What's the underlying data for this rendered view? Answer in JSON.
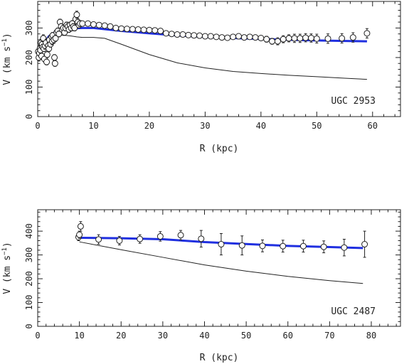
{
  "chart_data": [
    {
      "type": "scatter",
      "label": "UGC 2953",
      "xlabel": "R (kpc)",
      "ylabel_main": "V (km s",
      "ylabel_sup": "−1",
      "ylabel_close": ")",
      "xlim": [
        0,
        65
      ],
      "ylim": [
        0,
        390
      ],
      "xticks": [
        0,
        10,
        20,
        30,
        40,
        50,
        60
      ],
      "yticks": [
        0,
        100,
        200,
        300
      ],
      "observed": {
        "name": "observed rotation curve",
        "points": [
          [
            0.1,
            220,
            10
          ],
          [
            0.2,
            200,
            12
          ],
          [
            0.3,
            215,
            10
          ],
          [
            0.4,
            230,
            12
          ],
          [
            0.5,
            225,
            10
          ],
          [
            0.6,
            250,
            12
          ],
          [
            0.7,
            205,
            10
          ],
          [
            0.8,
            245,
            12
          ],
          [
            0.9,
            235,
            10
          ],
          [
            1.0,
            265,
            12
          ],
          [
            1.1,
            230,
            10
          ],
          [
            1.2,
            195,
            10
          ],
          [
            1.3,
            240,
            12
          ],
          [
            1.5,
            250,
            12
          ],
          [
            1.6,
            185,
            10
          ],
          [
            1.7,
            210,
            10
          ],
          [
            1.9,
            240,
            12
          ],
          [
            2.0,
            230,
            10
          ],
          [
            2.1,
            260,
            12
          ],
          [
            2.3,
            245,
            10
          ],
          [
            2.5,
            270,
            12
          ],
          [
            2.6,
            255,
            12
          ],
          [
            2.7,
            275,
            10
          ],
          [
            2.9,
            260,
            12
          ],
          [
            3.0,
            200,
            10
          ],
          [
            3.1,
            180,
            10
          ],
          [
            3.2,
            265,
            10
          ],
          [
            3.4,
            285,
            10
          ],
          [
            3.6,
            290,
            10
          ],
          [
            3.8,
            280,
            10
          ],
          [
            4.0,
            320,
            10
          ],
          [
            4.2,
            305,
            10
          ],
          [
            4.4,
            295,
            10
          ],
          [
            4.6,
            300,
            10
          ],
          [
            4.8,
            285,
            10
          ],
          [
            5.0,
            300,
            10
          ],
          [
            5.2,
            310,
            10
          ],
          [
            5.4,
            305,
            10
          ],
          [
            5.6,
            295,
            10
          ],
          [
            5.8,
            310,
            10
          ],
          [
            6.0,
            300,
            10
          ],
          [
            6.2,
            315,
            10
          ],
          [
            6.4,
            305,
            10
          ],
          [
            6.6,
            300,
            10
          ],
          [
            6.8,
            330,
            12
          ],
          [
            7.0,
            345,
            12
          ],
          [
            7.2,
            320,
            10
          ],
          [
            7.4,
            310,
            10
          ],
          [
            7.6,
            315,
            10
          ],
          [
            8.0,
            315,
            8
          ],
          [
            9.0,
            315,
            6
          ],
          [
            10.0,
            312,
            6
          ],
          [
            11.0,
            310,
            6
          ],
          [
            12.0,
            308,
            6
          ],
          [
            13.0,
            305,
            6
          ],
          [
            14.0,
            300,
            6
          ],
          [
            15.0,
            298,
            6
          ],
          [
            16.0,
            297,
            6
          ],
          [
            17.0,
            296,
            6
          ],
          [
            18.0,
            295,
            6
          ],
          [
            19.0,
            294,
            6
          ],
          [
            20.0,
            293,
            6
          ],
          [
            21.0,
            292,
            6
          ],
          [
            22.0,
            290,
            6
          ],
          [
            23.0,
            282,
            6
          ],
          [
            24.0,
            280,
            6
          ],
          [
            25.0,
            278,
            6
          ],
          [
            26.0,
            278,
            6
          ],
          [
            27.0,
            276,
            6
          ],
          [
            28.0,
            275,
            6
          ],
          [
            29.0,
            274,
            6
          ],
          [
            30.0,
            272,
            6
          ],
          [
            31.0,
            272,
            6
          ],
          [
            32.0,
            270,
            6
          ],
          [
            33.0,
            268,
            8
          ],
          [
            34.0,
            267,
            8
          ],
          [
            35.0,
            270,
            8
          ],
          [
            36.0,
            272,
            8
          ],
          [
            37.0,
            268,
            8
          ],
          [
            38.0,
            270,
            8
          ],
          [
            39.0,
            268,
            8
          ],
          [
            40.0,
            266,
            8
          ],
          [
            41.0,
            262,
            10
          ],
          [
            42.0,
            255,
            10
          ],
          [
            43.0,
            255,
            12
          ],
          [
            44.0,
            262,
            12
          ],
          [
            45.0,
            265,
            12
          ],
          [
            46.0,
            265,
            14
          ],
          [
            47.0,
            265,
            14
          ],
          [
            48.0,
            267,
            14
          ],
          [
            49.0,
            266,
            14
          ],
          [
            50.0,
            264,
            15
          ],
          [
            52.0,
            264,
            16
          ],
          [
            54.5,
            265,
            16
          ],
          [
            56.5,
            268,
            16
          ],
          [
            59.0,
            282,
            16
          ]
        ]
      },
      "model_total": {
        "name": "total model",
        "color": "#1f2fe0",
        "x": [
          0.0,
          1.0,
          2.0,
          3.0,
          4.0,
          5.0,
          6.0,
          7.0,
          8.0,
          10,
          15,
          20,
          25,
          30,
          35,
          40,
          45,
          50,
          55,
          59
        ],
        "y": [
          195,
          245,
          272,
          285,
          292,
          296,
          298,
          299,
          300,
          300,
          290,
          282,
          275,
          270,
          266,
          263,
          260,
          258,
          256,
          255
        ]
      },
      "model_component": {
        "name": "model component",
        "color": "#222222",
        "x": [
          0,
          1,
          2,
          3,
          4,
          5,
          6,
          7,
          8,
          10,
          12,
          15,
          20,
          25,
          30,
          35,
          40,
          45,
          50,
          55,
          59
        ],
        "y": [
          230,
          250,
          262,
          270,
          275,
          275,
          273,
          270,
          268,
          268,
          265,
          245,
          210,
          182,
          165,
          153,
          146,
          140,
          135,
          130,
          126
        ]
      }
    },
    {
      "type": "scatter",
      "label": "UGC 2487",
      "xlabel": "R (kpc)",
      "ylabel_main": "V (km s",
      "ylabel_sup": "−1",
      "ylabel_close": ")",
      "xlim": [
        0,
        87
      ],
      "ylim": [
        0,
        490
      ],
      "xticks": [
        0,
        10,
        20,
        30,
        40,
        50,
        60,
        70,
        80
      ],
      "yticks": [
        0,
        100,
        200,
        300,
        400
      ],
      "observed": {
        "name": "observed rotation curve",
        "points": [
          [
            9.8,
            375,
            15
          ],
          [
            10.0,
            385,
            15
          ],
          [
            10.3,
            420,
            20
          ],
          [
            14.6,
            365,
            20
          ],
          [
            19.6,
            360,
            18
          ],
          [
            24.5,
            367,
            18
          ],
          [
            29.4,
            378,
            20
          ],
          [
            34.3,
            383,
            20
          ],
          [
            39.2,
            368,
            35
          ],
          [
            44.0,
            345,
            45
          ],
          [
            49.0,
            340,
            40
          ],
          [
            53.9,
            338,
            25
          ],
          [
            58.8,
            337,
            25
          ],
          [
            63.7,
            337,
            25
          ],
          [
            68.6,
            334,
            25
          ],
          [
            73.5,
            331,
            35
          ],
          [
            78.4,
            345,
            55
          ]
        ]
      },
      "model_total": {
        "name": "total model",
        "color": "#1f2fe0",
        "x": [
          10,
          20,
          30,
          40,
          50,
          60,
          70,
          78
        ],
        "y": [
          372,
          370,
          366,
          354,
          346,
          338,
          333,
          329
        ]
      },
      "model_component": {
        "name": "model component",
        "color": "#222222",
        "x": [
          10,
          20,
          30,
          40,
          50,
          60,
          70,
          78
        ],
        "y": [
          355,
          322,
          290,
          258,
          232,
          210,
          192,
          180
        ]
      }
    }
  ]
}
